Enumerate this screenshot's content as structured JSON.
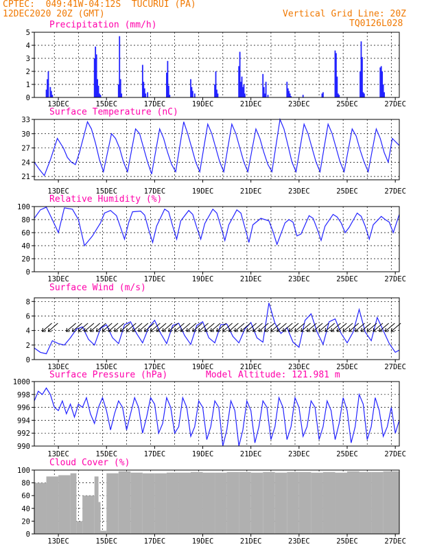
{
  "header": {
    "line1": "CPTEC:  049:41W-04:12S  TUCURUI (PA)",
    "line2": "12DEC2020 20Z (GMT)",
    "right1": "Vertical Grid Line: 20Z",
    "right2": "TQ0126L028"
  },
  "colors": {
    "header": "#f07800",
    "title": "#ff00aa",
    "series": "#2222ff",
    "cloud": "#b0b0b0"
  },
  "x_ticks": [
    "13DEC",
    "15DEC",
    "17DEC",
    "19DEC",
    "21DEC",
    "23DEC",
    "25DEC",
    "27DEC"
  ],
  "chart_data": [
    {
      "type": "bar",
      "title": "Precipitation (mm/h)",
      "ylim": [
        0,
        5
      ],
      "yticks": [
        0,
        1,
        2,
        3,
        4,
        5
      ],
      "x_hours_range": [
        0,
        364
      ],
      "x_hours": [
        12,
        13,
        14,
        16,
        17,
        18,
        60,
        61,
        62,
        63,
        64,
        65,
        66,
        84,
        85,
        86,
        87,
        108,
        109,
        110,
        111,
        113,
        132,
        133,
        134,
        135,
        156,
        157,
        158,
        160,
        180,
        181,
        182,
        183,
        204,
        205,
        206,
        207,
        208,
        209,
        210,
        228,
        229,
        230,
        231,
        233,
        252,
        253,
        254,
        255,
        256,
        268,
        287,
        288,
        300,
        301,
        302,
        303,
        304,
        325,
        326,
        327,
        328,
        329,
        345,
        346,
        347,
        348,
        349
      ],
      "values": [
        0.6,
        1.4,
        2.0,
        0.8,
        0.5,
        0.2,
        3.0,
        3.9,
        3.3,
        1.4,
        0.9,
        0.3,
        0.2,
        1.0,
        4.7,
        1.4,
        0.3,
        2.5,
        1.2,
        0.7,
        0.3,
        0.4,
        1.9,
        2.8,
        0.9,
        0.2,
        1.4,
        0.8,
        0.5,
        0.3,
        1.0,
        2.0,
        0.6,
        0.3,
        2.4,
        3.5,
        1.2,
        1.6,
        0.8,
        1.0,
        0.3,
        1.8,
        0.8,
        0.3,
        1.2,
        0.2,
        1.2,
        0.7,
        0.5,
        0.3,
        0.1,
        0.2,
        0.3,
        0.4,
        3.6,
        3.4,
        1.6,
        0.3,
        0.2,
        2.0,
        4.3,
        3.1,
        0.4,
        0.3,
        2.3,
        2.4,
        2.0,
        1.0,
        0.4
      ]
    },
    {
      "type": "line",
      "title": "Surface Temperature (nC)",
      "ylim": [
        20.3,
        33
      ],
      "yticks": [
        21,
        24,
        27,
        30,
        33
      ],
      "x": [
        0,
        5,
        10,
        16,
        23,
        29,
        33,
        37,
        41,
        45,
        53,
        57,
        61,
        65,
        69,
        77,
        81,
        85,
        89,
        93,
        101,
        105,
        109,
        113,
        117,
        125,
        129,
        133,
        137,
        141,
        149,
        153,
        157,
        161,
        165,
        173,
        177,
        181,
        185,
        189,
        197,
        201,
        205,
        209,
        213,
        221,
        225,
        229,
        233,
        237,
        245,
        249,
        253,
        257,
        261,
        269,
        273,
        277,
        281,
        285,
        293,
        297,
        301,
        305,
        309,
        317,
        321,
        325,
        329,
        333,
        341,
        345,
        349,
        353,
        357,
        364
      ],
      "y": [
        24,
        22.5,
        21.2,
        24.5,
        29,
        27,
        25,
        24,
        23.5,
        26,
        32.5,
        31,
        28,
        24.5,
        22,
        30,
        29,
        27,
        24,
        22,
        31,
        30,
        27,
        24,
        21.5,
        31,
        29,
        26,
        23.5,
        22,
        32.5,
        30,
        27,
        24,
        22,
        32,
        30,
        27,
        24,
        22,
        32,
        30,
        27,
        24,
        22,
        31,
        29,
        26,
        23.5,
        22,
        33,
        31,
        27.5,
        24,
        22,
        32,
        30,
        27,
        24,
        22,
        32,
        30,
        27,
        24,
        22,
        31,
        29.5,
        26.5,
        24,
        22,
        31,
        29,
        26,
        24,
        29,
        27.5
      ]
    },
    {
      "type": "line",
      "title": "Relative Humidity (%)",
      "ylim": [
        0,
        100
      ],
      "yticks": [
        0,
        20,
        40,
        60,
        80,
        100
      ],
      "x": [
        0,
        6,
        12,
        18,
        24,
        30,
        34,
        38,
        44,
        50,
        58,
        62,
        66,
        70,
        76,
        82,
        86,
        90,
        94,
        98,
        106,
        110,
        114,
        118,
        122,
        130,
        134,
        138,
        142,
        146,
        154,
        158,
        162,
        166,
        170,
        178,
        182,
        186,
        190,
        194,
        202,
        206,
        210,
        214,
        218,
        226,
        230,
        234,
        238,
        242,
        250,
        254,
        258,
        262,
        266,
        274,
        278,
        282,
        286,
        290,
        298,
        302,
        306,
        310,
        314,
        322,
        326,
        330,
        334,
        338,
        346,
        350,
        354,
        358,
        364
      ],
      "y": [
        82,
        95,
        99,
        80,
        60,
        98,
        97,
        96,
        80,
        40,
        55,
        65,
        75,
        90,
        94,
        86,
        68,
        50,
        75,
        92,
        93,
        87,
        65,
        45,
        70,
        96,
        92,
        70,
        50,
        78,
        94,
        88,
        68,
        50,
        74,
        96,
        90,
        70,
        48,
        72,
        95,
        90,
        68,
        45,
        72,
        82,
        80,
        78,
        62,
        42,
        75,
        80,
        76,
        55,
        58,
        86,
        82,
        66,
        48,
        70,
        88,
        84,
        75,
        60,
        68,
        90,
        85,
        70,
        50,
        72,
        85,
        80,
        76,
        60,
        88
      ]
    },
    {
      "type": "line",
      "title": "Surface Wind (m/s)",
      "ylim": [
        0,
        8.5
      ],
      "yticks": [
        0,
        2,
        4,
        6,
        8
      ],
      "x": [
        0,
        6,
        12,
        18,
        24,
        30,
        36,
        42,
        48,
        54,
        60,
        66,
        72,
        78,
        84,
        90,
        96,
        102,
        108,
        114,
        120,
        126,
        132,
        138,
        144,
        150,
        156,
        162,
        168,
        174,
        180,
        186,
        192,
        198,
        204,
        210,
        216,
        222,
        228,
        234,
        240,
        246,
        252,
        258,
        264,
        270,
        276,
        282,
        288,
        294,
        300,
        306,
        312,
        318,
        324,
        330,
        336,
        342,
        348,
        354,
        360,
        364
      ],
      "y": [
        1.6,
        1.0,
        0.8,
        2.6,
        2.2,
        2.0,
        3.0,
        4.2,
        4.5,
        2.8,
        2.0,
        4.3,
        4.8,
        3.0,
        2.2,
        4.8,
        5.2,
        3.6,
        2.3,
        4.4,
        5.4,
        3.6,
        2.2,
        4.7,
        5.0,
        3.3,
        2.1,
        4.7,
        5.2,
        3.0,
        2.3,
        4.8,
        4.9,
        3.2,
        2.3,
        4.2,
        5.1,
        3.0,
        2.4,
        7.8,
        5.0,
        3.6,
        4.4,
        2.4,
        1.7,
        5.4,
        6.3,
        3.8,
        2.1,
        5.2,
        5.6,
        3.6,
        2.3,
        3.8,
        6.9,
        3.8,
        2.6,
        5.8,
        4.0,
        2.2,
        1.0,
        1.3
      ],
      "arrows_x": [
        12,
        18,
        36,
        42,
        48,
        54,
        60,
        66,
        72,
        78,
        84,
        90,
        96,
        102,
        108,
        114,
        120,
        126,
        132,
        138,
        144,
        150,
        156,
        162,
        168,
        174,
        180,
        186,
        192,
        198,
        204,
        210,
        216,
        222,
        228,
        234,
        240,
        246,
        252,
        258,
        264,
        270,
        276,
        282,
        288,
        294,
        300,
        306,
        312,
        318,
        324,
        330,
        336,
        342,
        348,
        354,
        360
      ]
    },
    {
      "type": "line",
      "title": "Surface Pressure (hPa)",
      "annotation": "Model Altitude: 121.981 m",
      "ylim": [
        990,
        1000
      ],
      "yticks": [
        990,
        992,
        994,
        996,
        998,
        1000
      ],
      "x": [
        0,
        4,
        8,
        12,
        16,
        20,
        24,
        28,
        32,
        36,
        40,
        44,
        48,
        52,
        56,
        60,
        64,
        68,
        72,
        76,
        80,
        84,
        88,
        92,
        96,
        100,
        104,
        108,
        112,
        116,
        120,
        124,
        128,
        132,
        136,
        140,
        144,
        148,
        152,
        156,
        160,
        164,
        168,
        172,
        176,
        180,
        184,
        188,
        192,
        196,
        200,
        204,
        208,
        212,
        216,
        220,
        224,
        228,
        232,
        236,
        240,
        244,
        248,
        252,
        256,
        260,
        264,
        268,
        272,
        276,
        280,
        284,
        288,
        292,
        296,
        300,
        304,
        308,
        312,
        316,
        320,
        324,
        328,
        332,
        336,
        340,
        344,
        348,
        352,
        356,
        360,
        364
      ],
      "y": [
        997,
        998.5,
        998,
        999,
        998,
        996,
        995.5,
        997,
        995,
        996.5,
        994.5,
        996.5,
        996,
        997.5,
        995,
        993.5,
        996,
        997.5,
        995.5,
        992.5,
        995,
        997,
        996,
        992.5,
        995,
        997.5,
        996,
        992,
        994.5,
        997.5,
        996.5,
        992,
        993.5,
        997.5,
        996,
        992,
        993,
        997.5,
        996,
        991.5,
        993,
        997,
        996,
        991,
        993,
        997,
        996,
        990,
        992.5,
        997,
        995.5,
        990,
        992.5,
        997,
        995.5,
        990.5,
        993,
        997,
        996,
        991,
        993,
        997.5,
        996,
        991,
        993,
        997.5,
        996,
        991.5,
        993,
        997,
        996,
        991,
        993,
        997,
        995.5,
        991,
        993.5,
        997.5,
        995.5,
        990.5,
        993,
        998,
        996.5,
        991,
        993,
        997.5,
        995.5,
        991.5,
        993,
        996,
        992,
        994
      ]
    },
    {
      "type": "bar",
      "title": "Cloud Cover (%)",
      "ylim": [
        0,
        100
      ],
      "yticks": [
        0,
        20,
        40,
        60,
        80,
        100
      ],
      "x_hours_range": [
        0,
        364
      ],
      "segments_x": [
        0,
        12,
        24,
        36,
        42,
        48,
        60,
        64,
        66,
        72,
        84,
        96,
        108,
        120,
        132,
        144,
        156,
        168,
        180,
        192,
        204,
        216,
        228,
        240,
        252,
        264,
        276,
        288,
        300,
        312,
        324,
        336,
        348,
        364
      ],
      "values": [
        80,
        90,
        92,
        95,
        20,
        60,
        90,
        50,
        5,
        95,
        98,
        96,
        95,
        95,
        96,
        96,
        97,
        96,
        96,
        97,
        97,
        96,
        97,
        96,
        97,
        97,
        96,
        97,
        96,
        98,
        97,
        97,
        98
      ]
    }
  ]
}
